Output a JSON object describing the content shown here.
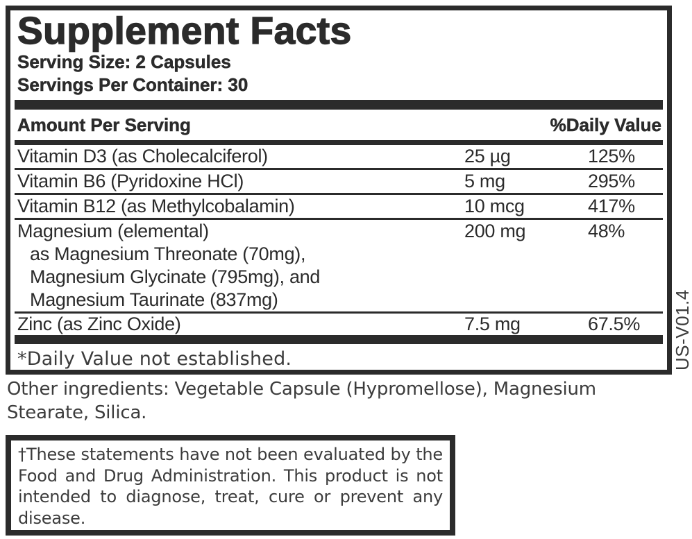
{
  "colors": {
    "ink": "#2b2b2b",
    "soft_ink": "#3c3c3c",
    "background": "#ffffff"
  },
  "panel": {
    "title": "Supplement Facts",
    "serving_size": "Serving Size: 2 Capsules",
    "servings_per_container": "Servings Per Container: 30",
    "header": {
      "amount_per_serving": "Amount Per Serving",
      "daily_value": "%Daily Value"
    },
    "rows": [
      {
        "name": "Vitamin D3 (as Cholecalciferol)",
        "amount": "25 µg",
        "dv": "125%",
        "sub": []
      },
      {
        "name": "Vitamin B6 (Pyridoxine HCl)",
        "amount": "5 mg",
        "dv": "295%",
        "sub": []
      },
      {
        "name": "Vitamin B12 (as Methylcobalamin)",
        "amount": "10 mcg",
        "dv": "417%",
        "sub": []
      },
      {
        "name": "Magnesium (elemental)",
        "amount": "200 mg",
        "dv": "48%",
        "sub": [
          "as Magnesium Threonate (70mg),",
          "Magnesium Glycinate (795mg), and",
          "Magnesium Taurinate (837mg)"
        ]
      },
      {
        "name": "Zinc (as Zinc Oxide)",
        "amount": "7.5 mg",
        "dv": "67.5%",
        "sub": []
      }
    ],
    "footnote": "*Daily Value not established."
  },
  "version_code": "US-V01.4",
  "other_ingredients": "Other ingredients: Vegetable Capsule (Hypromellose), Magnesium Stearate, Silica.",
  "disclaimer": "†These statements have not been evaluated by the Food and Drug Administration. This product is not intended to diagnose, treat, cure or prevent any disease."
}
